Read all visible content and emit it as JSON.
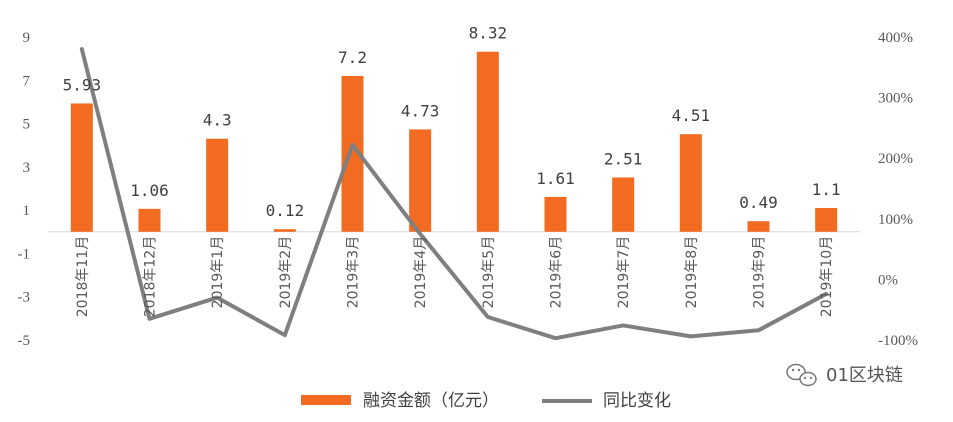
{
  "chart_data": {
    "type": "bar",
    "categories": [
      "2018年11月",
      "2018年12月",
      "2019年1月",
      "2019年2月",
      "2019年3月",
      "2019年4月",
      "2019年5月",
      "2019年6月",
      "2019年7月",
      "2019年8月",
      "2019年9月",
      "2019年10月"
    ],
    "series": [
      {
        "name": "融资金额（亿元）",
        "type": "bar",
        "axis": "left",
        "color": "#F26B21",
        "values": [
          5.93,
          1.06,
          4.3,
          0.12,
          7.2,
          4.73,
          8.32,
          1.61,
          2.51,
          4.51,
          0.49,
          1.1
        ],
        "labels": [
          "5.93",
          "1.06",
          "4.3",
          "0.12",
          "7.2",
          "4.73",
          "8.32",
          "1.61",
          "2.51",
          "4.51",
          "0.49",
          "1.1"
        ]
      },
      {
        "name": "同比变化",
        "type": "line",
        "axis": "right",
        "color": "#7F7F7F",
        "values": [
          380,
          -65,
          -30,
          -92,
          222,
          75,
          -62,
          -97,
          -76,
          -94,
          -84,
          -24
        ]
      }
    ],
    "y_left": {
      "range": [
        -5,
        9
      ],
      "ticks": [
        "9",
        "7",
        "5",
        "3",
        "1",
        "-1",
        "-3",
        "-5"
      ]
    },
    "y_right": {
      "range": [
        -100,
        400
      ],
      "ticks": [
        "400%",
        "300%",
        "200%",
        "100%",
        "0%",
        "-100%"
      ]
    },
    "legend_position": "bottom",
    "grid": false
  },
  "watermark": {
    "text": "01区块链",
    "icon": "wechat-icon"
  }
}
